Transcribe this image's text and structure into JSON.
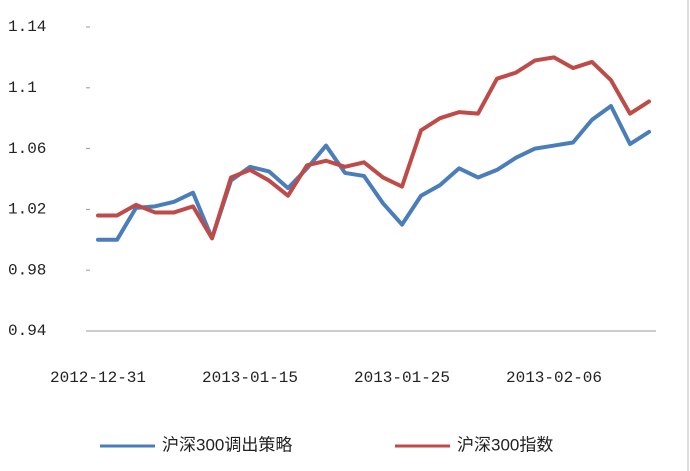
{
  "chart_data": {
    "type": "line",
    "categories": [
      "2012-12-31",
      null,
      null,
      null,
      null,
      null,
      null,
      null,
      "2013-01-15",
      null,
      null,
      null,
      null,
      null,
      null,
      null,
      "2013-01-25",
      null,
      null,
      null,
      null,
      null,
      null,
      null,
      "2013-02-06",
      null,
      null,
      null,
      null,
      null
    ],
    "series": [
      {
        "name": "沪深300调出策略",
        "color": "#4a7ebb",
        "values": [
          1.0,
          1.0,
          1.021,
          1.022,
          1.025,
          1.031,
          1.001,
          1.039,
          1.048,
          1.045,
          1.034,
          1.047,
          1.062,
          1.044,
          1.042,
          1.024,
          1.01,
          1.029,
          1.036,
          1.047,
          1.041,
          1.046,
          1.054,
          1.06,
          1.062,
          1.064,
          1.079,
          1.088,
          1.063,
          1.071
        ]
      },
      {
        "name": "沪深300指数",
        "color": "#be4b48",
        "values": [
          1.016,
          1.016,
          1.023,
          1.018,
          1.018,
          1.022,
          1.001,
          1.041,
          1.046,
          1.039,
          1.029,
          1.049,
          1.052,
          1.048,
          1.051,
          1.041,
          1.035,
          1.072,
          1.08,
          1.084,
          1.083,
          1.106,
          1.11,
          1.118,
          1.12,
          1.113,
          1.117,
          1.105,
          1.083,
          1.091
        ]
      }
    ],
    "ylim": [
      0.94,
      1.14
    ],
    "yticks": [
      0.94,
      0.98,
      1.02,
      1.06,
      1.1,
      1.14
    ],
    "grid": false,
    "legend": "bottom"
  }
}
